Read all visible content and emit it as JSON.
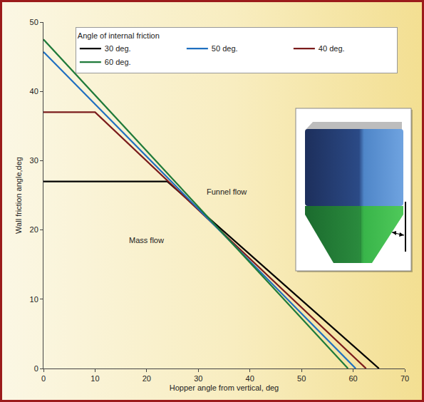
{
  "chart_data": {
    "type": "line",
    "x_label": "Hopper angle from vertical, deg",
    "y_label": "Wall friction angle,deg",
    "legend_title": "Angle of internal friction",
    "series": [
      {
        "name": "30 deg.",
        "color": "#000000",
        "x": [
          0,
          24,
          65
        ],
        "values": [
          27,
          27,
          0
        ]
      },
      {
        "name": "40 deg.",
        "color": "#7b1c1c",
        "x": [
          0,
          10,
          62.5
        ],
        "values": [
          37,
          37,
          0
        ]
      },
      {
        "name": "50 deg.",
        "color": "#1f6fc0",
        "x": [
          0,
          60.5
        ],
        "values": [
          45.7,
          0
        ]
      },
      {
        "name": "60 deg.",
        "color": "#1f7a3a",
        "x": [
          0,
          59
        ],
        "values": [
          47.5,
          0
        ]
      }
    ],
    "annotations": [
      {
        "text": "Funnel flow",
        "x": 35.5,
        "y": 25.5
      },
      {
        "text": "Mass flow",
        "x": 20,
        "y": 18.5
      }
    ],
    "xlim": [
      0,
      70
    ],
    "xticks": [
      0,
      10,
      20,
      30,
      40,
      50,
      60,
      70
    ],
    "ylim": [
      0,
      50
    ],
    "yticks": [
      0,
      10,
      20,
      30,
      40,
      50
    ],
    "legend": "top right",
    "grid": false
  }
}
